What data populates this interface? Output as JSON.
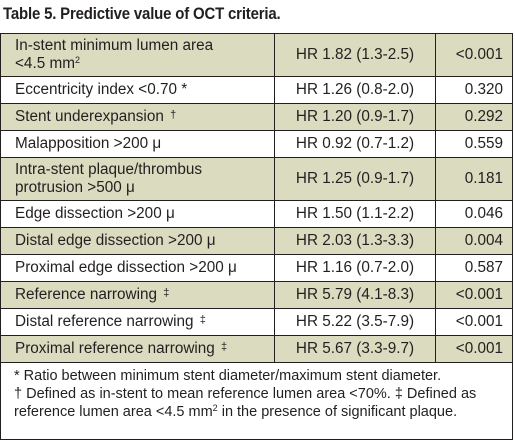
{
  "title": "Table 5. Predictive value of OCT criteria.",
  "rows": [
    {
      "label_line1": "In-stent minimum lumen area",
      "label_line2": "<4.5 mm",
      "label_sup": "2",
      "hr": "HR 1.82 (1.3-2.5)",
      "p": "<0.001"
    },
    {
      "label": "Eccentricity index <0.70 *",
      "hr": "HR 1.26 (0.8-2.0)",
      "p": "0.320"
    },
    {
      "label": "Stent underexpansion",
      "mark": "†",
      "hr": "HR 1.20 (0.9-1.7)",
      "p": "0.292"
    },
    {
      "label": "Malapposition >200 μ",
      "hr": "HR 0.92 (0.7-1.2)",
      "p": "0.559"
    },
    {
      "label_line1": "Intra-stent plaque/thrombus",
      "label_line2": "protrusion >500 μ",
      "hr": "HR 1.25 (0.9-1.7)",
      "p": "0.181"
    },
    {
      "label": "Edge dissection >200 μ",
      "hr": "HR 1.50 (1.1-2.2)",
      "p": "0.046"
    },
    {
      "label": "Distal edge dissection >200 μ",
      "hr": "HR 2.03 (1.3-3.3)",
      "p": "0.004"
    },
    {
      "label": "Proximal edge dissection >200 μ",
      "hr": "HR 1.16 (0.7-2.0)",
      "p": "0.587"
    },
    {
      "label": "Reference narrowing",
      "mark": "‡",
      "hr": "HR 5.79 (4.1-8.3)",
      "p": "<0.001"
    },
    {
      "label": "Distal reference narrowing",
      "mark": "‡",
      "hr": "HR 5.22 (3.5-7.9)",
      "p": "<0.001"
    },
    {
      "label": "Proximal reference narrowing",
      "mark": "‡",
      "hr": "HR 5.67 (3.3-9.7)",
      "p": "<0.001"
    }
  ],
  "footnotes": {
    "line1": "* Ratio between minimum stent diameter/maximum stent diameter.",
    "line2": "† Defined as in-stent to mean reference lumen area <70%. ‡ Defined as",
    "line3a": "reference lumen area <4.5 mm",
    "line3_sup": "2",
    "line3b": " in the presence of significant plaque."
  },
  "colors": {
    "row_tint": "#dadbbf",
    "border": "#231f20"
  }
}
